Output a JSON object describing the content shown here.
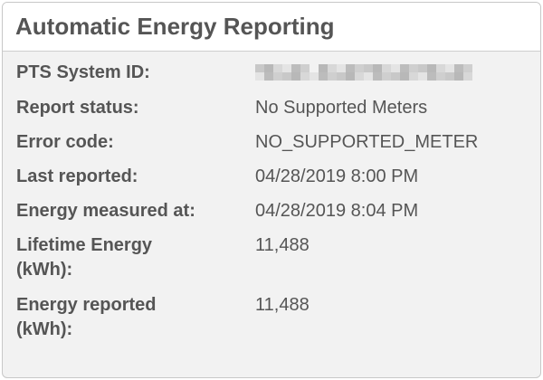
{
  "title": "Automatic Energy Reporting",
  "rows": [
    {
      "label": "PTS System ID:",
      "value": ""
    },
    {
      "label": "Report status:",
      "value": "No Supported Meters"
    },
    {
      "label": "Error code:",
      "value": "NO_SUPPORTED_METER"
    },
    {
      "label": "Last reported:",
      "value": "04/28/2019 8:00 PM"
    },
    {
      "label": "Energy measured at:",
      "value": "04/28/2019 8:04 PM"
    },
    {
      "label": "Lifetime Energy (kWh):",
      "value": "11,488"
    },
    {
      "label": "Energy reported (kWh):",
      "value": "11,488"
    }
  ]
}
